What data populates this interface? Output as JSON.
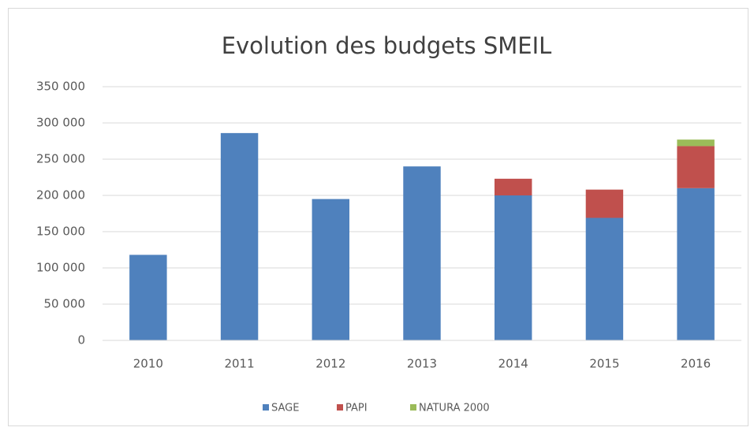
{
  "chart_data": {
    "type": "stacked_bar",
    "title": "Evolution des budgets SMEIL",
    "categories": [
      "2010",
      "2011",
      "2012",
      "2013",
      "2014",
      "2015",
      "2016"
    ],
    "series": [
      {
        "name": "SAGE",
        "color": "#4f81bd",
        "values": [
          118000,
          286000,
          195000,
          240000,
          200000,
          169000,
          210000
        ]
      },
      {
        "name": "PAPI",
        "color": "#c0504d",
        "values": [
          null,
          null,
          null,
          null,
          23000,
          39000,
          58000
        ]
      },
      {
        "name": "NATURA 2000",
        "color": "#9bbb59",
        "values": [
          null,
          null,
          null,
          null,
          null,
          null,
          9000
        ]
      }
    ],
    "ylim": [
      0,
      350000
    ],
    "yticks": [
      0,
      {
        "value": 50000,
        "label": "50 000"
      },
      {
        "value": 100000,
        "label": "100 000"
      },
      {
        "value": 150000,
        "label": "150 000"
      },
      {
        "value": 200000,
        "label": "200 000"
      },
      {
        "value": 250000,
        "label": "250 000"
      },
      {
        "value": 300000,
        "label": "300 000"
      },
      {
        "value": 350000,
        "label": "350 000"
      }
    ],
    "grid": true,
    "legend": "bottom"
  }
}
